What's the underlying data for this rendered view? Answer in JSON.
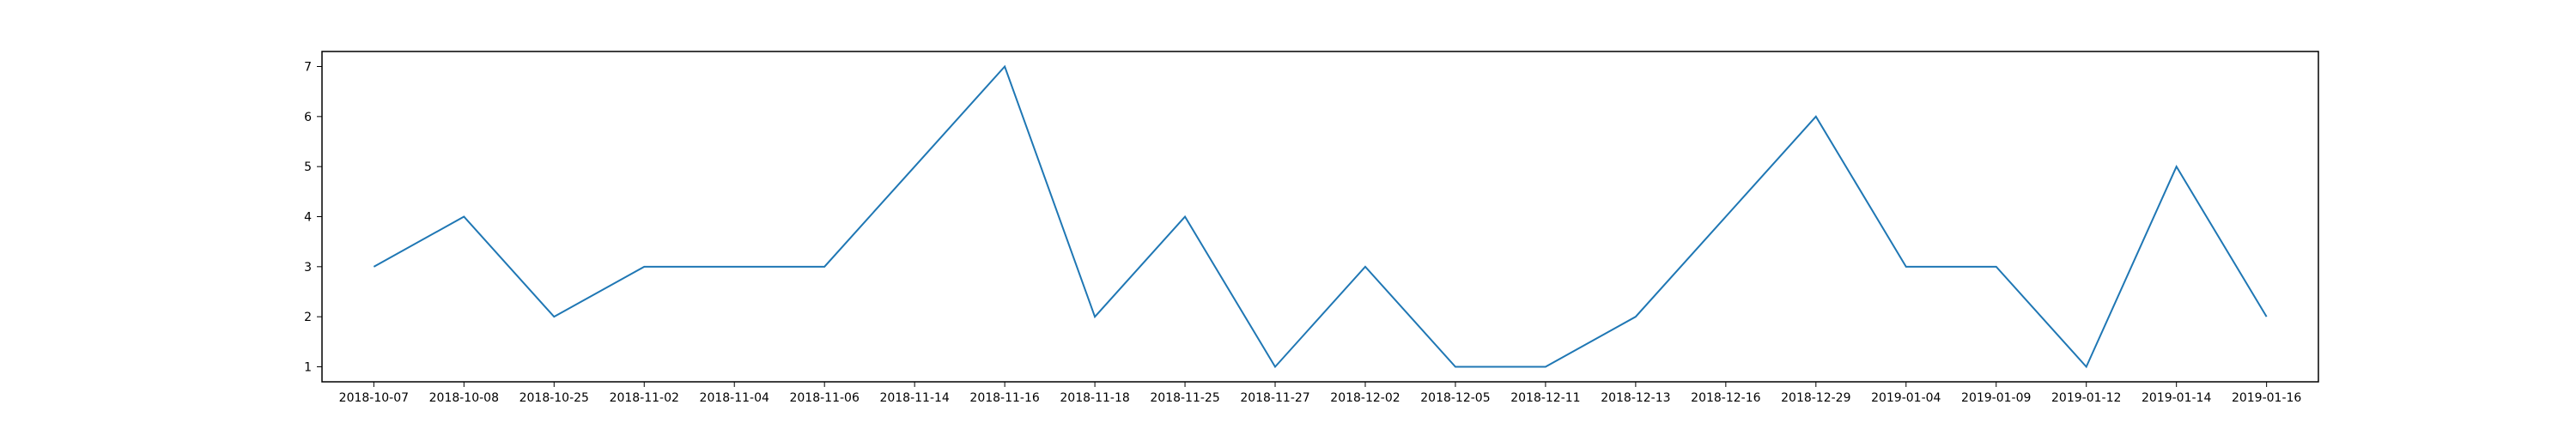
{
  "chart_data": {
    "type": "line",
    "title": "",
    "xlabel": "",
    "ylabel": "",
    "x_type": "category",
    "categories": [
      "2018-10-07",
      "2018-10-08",
      "2018-10-25",
      "2018-11-02",
      "2018-11-04",
      "2018-11-06",
      "2018-11-14",
      "2018-11-16",
      "2018-11-18",
      "2018-11-25",
      "2018-11-27",
      "2018-12-02",
      "2018-12-05",
      "2018-12-11",
      "2018-12-13",
      "2018-12-16",
      "2018-12-29",
      "2019-01-04",
      "2019-01-09",
      "2019-01-12",
      "2019-01-14",
      "2019-01-16"
    ],
    "series": [
      {
        "values": [
          3,
          4,
          2,
          3,
          3,
          3,
          5,
          7,
          2,
          4,
          1,
          3,
          1,
          1,
          2,
          4,
          6,
          3,
          3,
          1,
          5,
          2
        ],
        "color": "#1f77b4"
      }
    ],
    "yticks": [
      1,
      2,
      3,
      4,
      5,
      6,
      7
    ],
    "ylim": [
      0.7,
      7.3
    ],
    "grid": false,
    "legend": "none"
  }
}
